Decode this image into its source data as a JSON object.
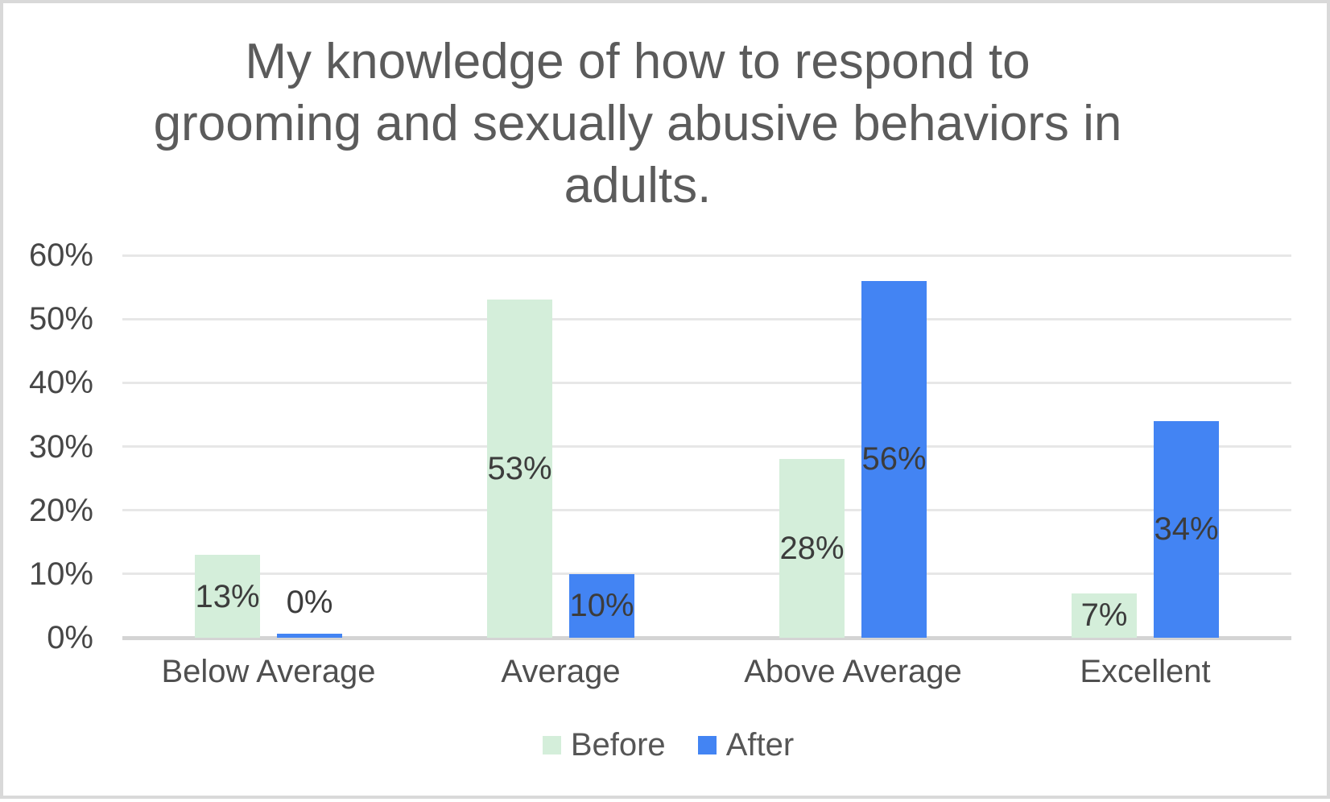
{
  "chart_data": {
    "type": "bar",
    "title": "My knowledge of how to respond to grooming and sexually abusive behaviors in adults.",
    "title_lines": [
      "My knowledge of how to respond to",
      "grooming and sexually abusive behaviors in",
      "adults."
    ],
    "categories": [
      "Below Average",
      "Average",
      "Above Average",
      "Excellent"
    ],
    "series": [
      {
        "name": "Before",
        "color": "#d4eeda",
        "values": [
          13,
          53,
          28,
          7
        ],
        "labels": [
          "13%",
          "53%",
          "28%",
          "7%"
        ]
      },
      {
        "name": "After",
        "color": "#4384f3",
        "values": [
          0,
          10,
          56,
          34
        ],
        "labels": [
          "0%",
          "10%",
          "56%",
          "34%"
        ]
      }
    ],
    "xlabel": "",
    "ylabel": "",
    "ylim": [
      0,
      60
    ],
    "yticks": [
      {
        "value": 0,
        "label": "0%"
      },
      {
        "value": 10,
        "label": "10%"
      },
      {
        "value": 20,
        "label": "20%"
      },
      {
        "value": 30,
        "label": "30%"
      },
      {
        "value": 40,
        "label": "40%"
      },
      {
        "value": 50,
        "label": "50%"
      },
      {
        "value": 60,
        "label": "60%"
      }
    ],
    "grid": true,
    "legend_position": "bottom"
  },
  "colors": {
    "title_text": "#5b5b5b",
    "axis_tick_text": "#474747",
    "category_text": "#4f4f4f",
    "data_label_text": "#3c3c3c",
    "legend_text": "#565656",
    "gridline": "#e7e7e7",
    "baseline": "#d4d4d4",
    "frame_border": "#d9d9d9",
    "background": "#ffffff"
  }
}
